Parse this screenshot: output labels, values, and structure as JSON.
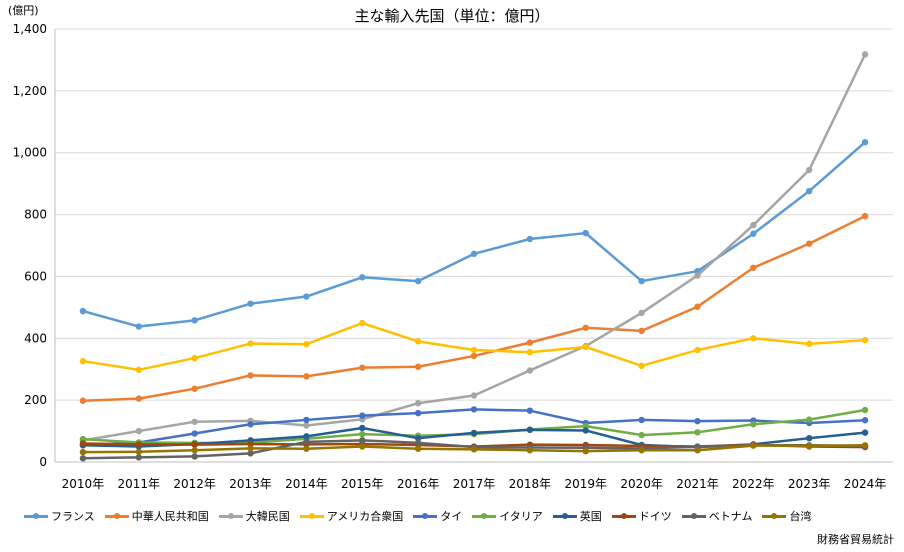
{
  "chart_data": {
    "type": "line",
    "title": "主な輸入先国（単位：億円）",
    "unit_label": "(億円)",
    "source": "財務省貿易統計",
    "categories": [
      "2010年",
      "2011年",
      "2012年",
      "2013年",
      "2014年",
      "2015年",
      "2016年",
      "2017年",
      "2018年",
      "2019年",
      "2020年",
      "2021年",
      "2022年",
      "2023年",
      "2024年"
    ],
    "ylim": [
      0,
      1400
    ],
    "yticks": [
      0,
      200,
      400,
      600,
      800,
      1000,
      1200,
      1400
    ],
    "ytick_labels": [
      "0",
      "200",
      "400",
      "600",
      "800",
      "1,000",
      "1,200",
      "1,400"
    ],
    "grid": true,
    "legend_position": "bottom",
    "series": [
      {
        "name": "フランス",
        "color": "#5B9BD5",
        "values": [
          488,
          438,
          458,
          512,
          535,
          597,
          585,
          673,
          721,
          740,
          585,
          617,
          738,
          876,
          1034
        ]
      },
      {
        "name": "中華人民共和国",
        "color": "#ED7D31",
        "values": [
          198,
          205,
          237,
          280,
          277,
          305,
          308,
          343,
          386,
          434,
          424,
          502,
          628,
          706,
          795
        ]
      },
      {
        "name": "大韓民国",
        "color": "#A5A5A5",
        "values": [
          70,
          100,
          130,
          133,
          118,
          138,
          190,
          215,
          296,
          375,
          482,
          603,
          766,
          944,
          1318
        ]
      },
      {
        "name": "アメリカ合衆国",
        "color": "#FFC000",
        "values": [
          326,
          298,
          336,
          383,
          381,
          449,
          390,
          362,
          355,
          372,
          311,
          362,
          400,
          382,
          394
        ]
      },
      {
        "name": "タイ",
        "color": "#4472C4",
        "values": [
          55,
          63,
          92,
          122,
          136,
          150,
          158,
          170,
          166,
          126,
          136,
          132,
          134,
          126,
          135
        ]
      },
      {
        "name": "イタリア",
        "color": "#70AD47",
        "values": [
          74,
          63,
          62,
          62,
          75,
          90,
          85,
          90,
          105,
          116,
          87,
          96,
          122,
          137,
          168
        ]
      },
      {
        "name": "英国",
        "color": "#255E91",
        "values": [
          54,
          50,
          58,
          70,
          83,
          110,
          77,
          94,
          104,
          102,
          55,
          48,
          57,
          77,
          95
        ]
      },
      {
        "name": "ドイツ",
        "color": "#9E480E",
        "values": [
          60,
          57,
          56,
          58,
          57,
          58,
          55,
          50,
          56,
          55,
          52,
          50,
          56,
          50,
          48
        ]
      },
      {
        "name": "ベトナム",
        "color": "#636363",
        "values": [
          12,
          15,
          18,
          28,
          65,
          70,
          62,
          48,
          47,
          46,
          44,
          49,
          54,
          54,
          52
        ]
      },
      {
        "name": "台湾",
        "color": "#997300",
        "values": [
          32,
          33,
          38,
          44,
          43,
          50,
          43,
          41,
          38,
          35,
          38,
          38,
          53,
          52,
          54
        ]
      }
    ]
  }
}
